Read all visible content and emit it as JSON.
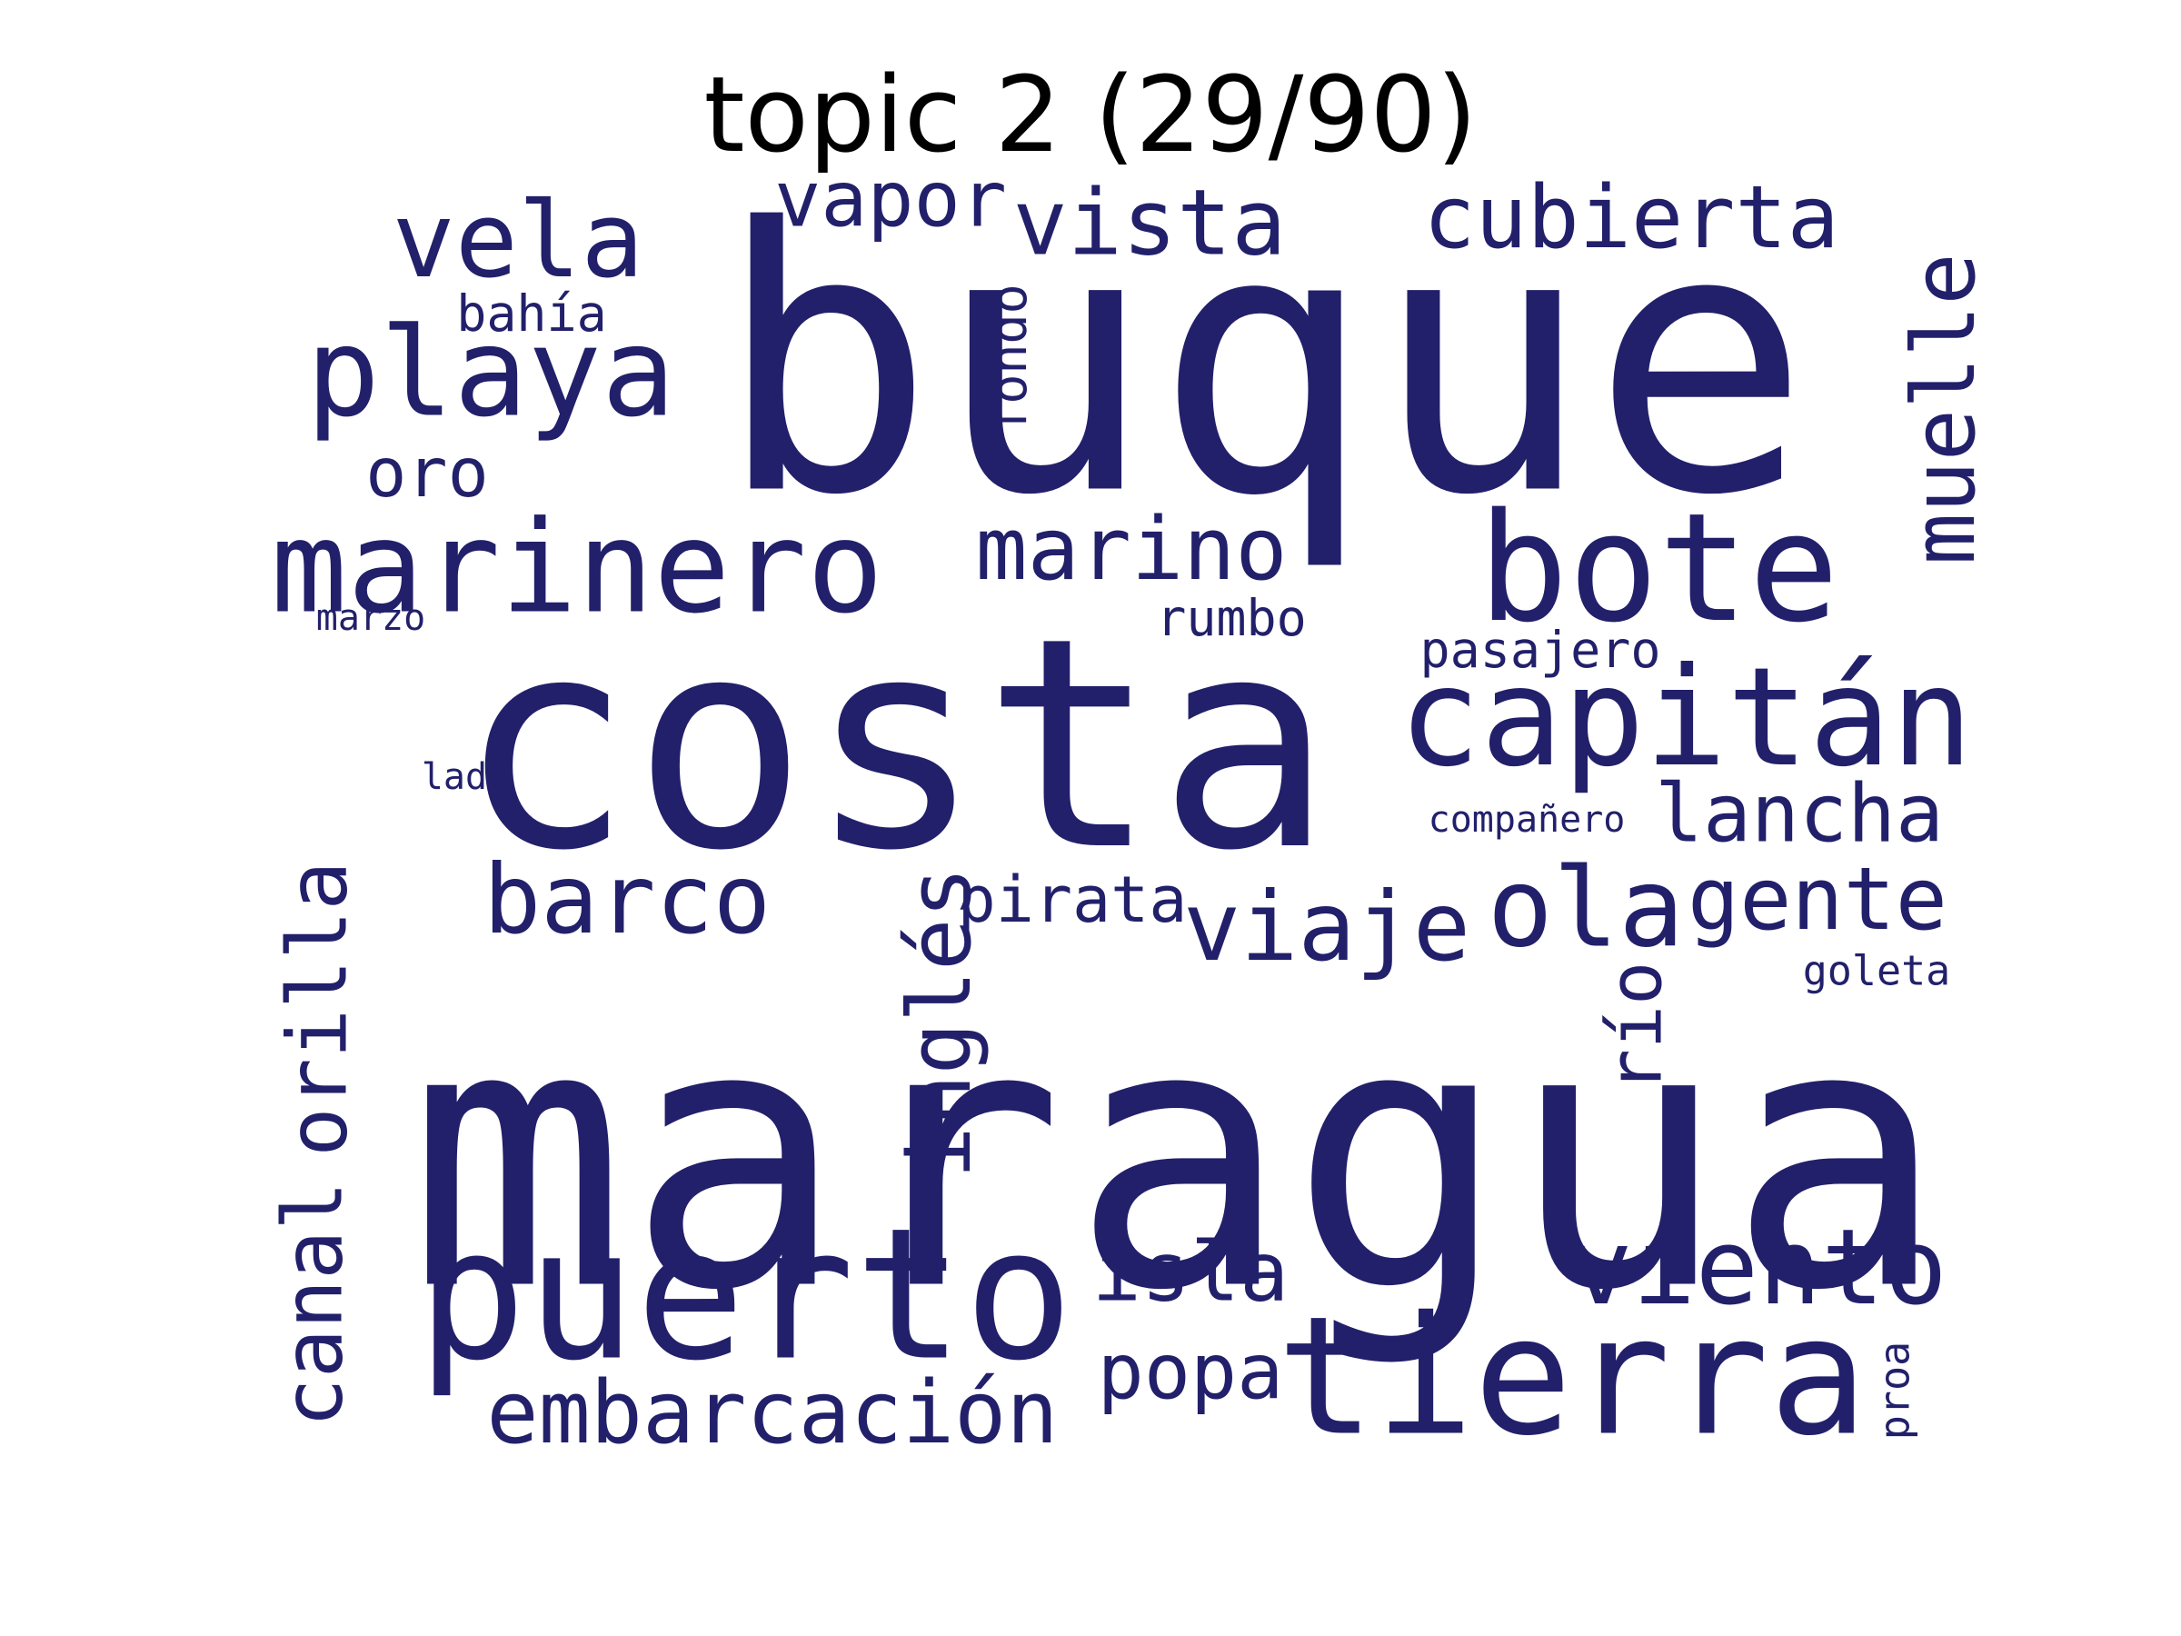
{
  "title": "topic 2 (29/90)",
  "word_color": "#22206a",
  "words": [
    {
      "text": "buque"
    },
    {
      "text": "costa"
    },
    {
      "text": "mar"
    },
    {
      "text": "agua"
    },
    {
      "text": "puerto"
    },
    {
      "text": "tierra"
    },
    {
      "text": "bote"
    },
    {
      "text": "capitán"
    },
    {
      "text": "marinero"
    },
    {
      "text": "playa"
    },
    {
      "text": "vela"
    },
    {
      "text": "vista"
    },
    {
      "text": "cubierta"
    },
    {
      "text": "muelle"
    },
    {
      "text": "vapor"
    },
    {
      "text": "marino"
    },
    {
      "text": "barco"
    },
    {
      "text": "viaje"
    },
    {
      "text": "ola"
    },
    {
      "text": "gente"
    },
    {
      "text": "lancha"
    },
    {
      "text": "viento"
    },
    {
      "text": "isla"
    },
    {
      "text": "popa"
    },
    {
      "text": "embarcación"
    },
    {
      "text": "inglés"
    },
    {
      "text": "orilla"
    },
    {
      "text": "canal"
    },
    {
      "text": "río"
    },
    {
      "text": "pirata"
    },
    {
      "text": "oro"
    },
    {
      "text": "bahía"
    },
    {
      "text": "fondo"
    },
    {
      "text": "rumbo"
    },
    {
      "text": "pasajero"
    },
    {
      "text": "compañero"
    },
    {
      "text": "goleta"
    },
    {
      "text": "proa"
    },
    {
      "text": "lado"
    },
    {
      "text": "marzo"
    }
  ]
}
